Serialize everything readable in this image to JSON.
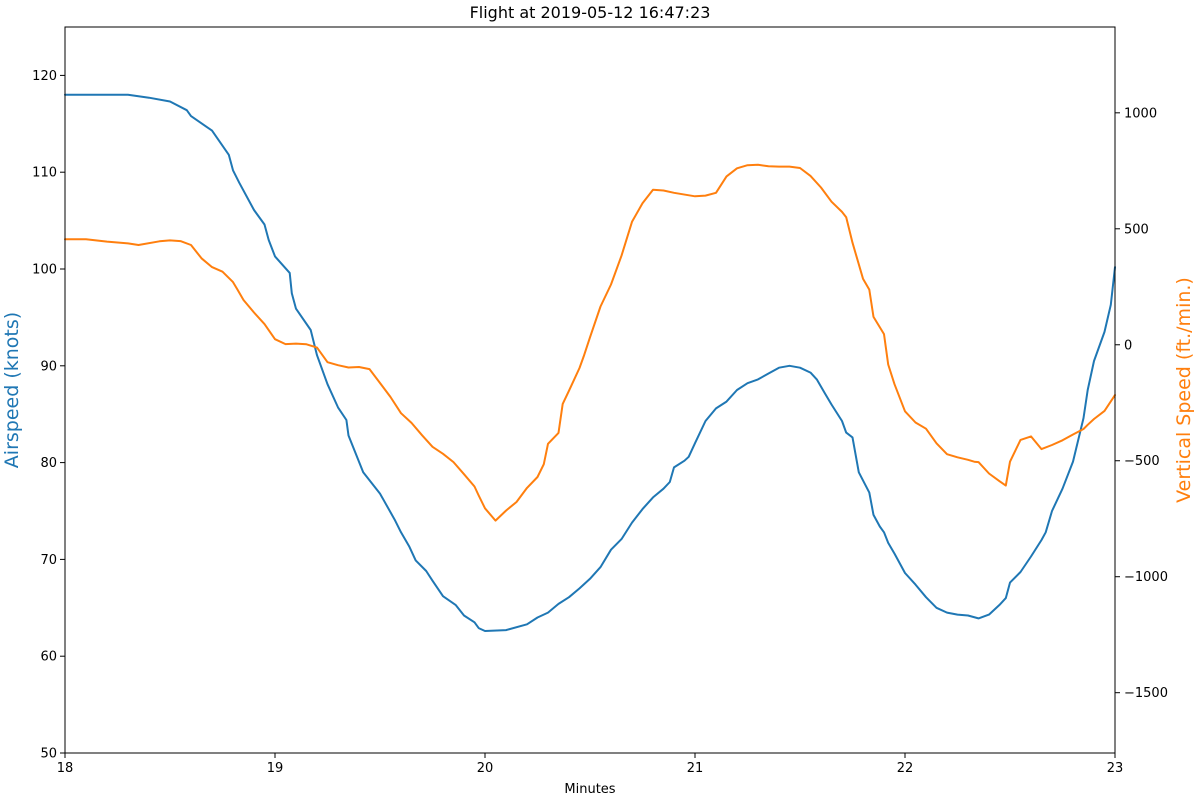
{
  "chart_data": {
    "type": "line",
    "title": "Flight at 2019-05-12 16:47:23",
    "xlabel": "Minutes",
    "xlim": [
      18,
      23
    ],
    "x_ticks": [
      18,
      19,
      20,
      21,
      22,
      23
    ],
    "grid": false,
    "colors": {
      "airspeed": "#1f77b4",
      "vertical_speed": "#ff7f0e"
    },
    "left_axis": {
      "label": "Airspeed (knots)",
      "ylim": [
        50,
        125
      ],
      "ticks": [
        50,
        60,
        70,
        80,
        90,
        100,
        110,
        120
      ]
    },
    "right_axis": {
      "label": "Vertical Speed (ft./min.)",
      "ylim": [
        -1760,
        1370
      ],
      "ticks": [
        -1500,
        -1000,
        -500,
        0,
        500,
        1000
      ],
      "tick_labels": [
        "−1500",
        "−1000",
        "−500",
        "0",
        "500",
        "1000"
      ]
    },
    "series": [
      {
        "axis": "left",
        "color": "#1f77b4",
        "x": [
          18.0,
          18.1,
          18.2,
          18.3,
          18.4,
          18.5,
          18.58,
          18.6,
          18.7,
          18.78,
          18.8,
          18.83,
          18.9,
          18.95,
          18.97,
          19.0,
          19.07,
          19.08,
          19.1,
          19.17,
          19.2,
          19.25,
          19.3,
          19.34,
          19.35,
          19.42,
          19.5,
          19.57,
          19.6,
          19.64,
          19.67,
          19.72,
          19.75,
          19.8,
          19.86,
          19.9,
          19.95,
          19.97,
          20.0,
          20.1,
          20.2,
          20.25,
          20.3,
          20.35,
          20.4,
          20.45,
          20.5,
          20.55,
          20.6,
          20.65,
          20.7,
          20.75,
          20.8,
          20.85,
          20.88,
          20.9,
          20.95,
          20.97,
          21.0,
          21.05,
          21.1,
          21.15,
          21.2,
          21.25,
          21.3,
          21.35,
          21.4,
          21.45,
          21.5,
          21.55,
          21.58,
          21.62,
          21.65,
          21.7,
          21.72,
          21.75,
          21.78,
          21.83,
          21.85,
          21.88,
          21.9,
          21.92,
          21.95,
          22.0,
          22.05,
          22.1,
          22.15,
          22.2,
          22.25,
          22.3,
          22.35,
          22.4,
          22.45,
          22.48,
          22.5,
          22.55,
          22.6,
          22.65,
          22.67,
          22.7,
          22.75,
          22.8,
          22.85,
          22.87,
          22.9,
          22.95,
          22.98,
          23.0
        ],
        "y": [
          118.0,
          118.0,
          118.0,
          118.0,
          117.7,
          117.3,
          116.4,
          115.8,
          114.3,
          111.8,
          110.2,
          108.9,
          106.1,
          104.6,
          103.0,
          101.3,
          99.6,
          97.5,
          95.9,
          93.7,
          91.1,
          88.1,
          85.7,
          84.4,
          82.8,
          79.0,
          76.8,
          74.1,
          72.8,
          71.3,
          69.9,
          68.8,
          67.8,
          66.2,
          65.3,
          64.2,
          63.5,
          62.9,
          62.6,
          62.7,
          63.3,
          64.0,
          64.5,
          65.4,
          66.1,
          67.0,
          68.0,
          69.2,
          71.0,
          72.1,
          73.8,
          75.2,
          76.4,
          77.3,
          78.0,
          79.5,
          80.2,
          80.6,
          82.0,
          84.3,
          85.6,
          86.3,
          87.5,
          88.2,
          88.6,
          89.2,
          89.8,
          90.0,
          89.8,
          89.3,
          88.6,
          87.1,
          86.0,
          84.3,
          83.1,
          82.6,
          79.0,
          76.9,
          74.6,
          73.4,
          72.8,
          71.7,
          70.6,
          68.6,
          67.4,
          66.1,
          65.0,
          64.5,
          64.3,
          64.2,
          63.9,
          64.3,
          65.3,
          66.0,
          67.6,
          68.7,
          70.3,
          72.0,
          72.8,
          75.0,
          77.3,
          80.1,
          84.6,
          87.5,
          90.5,
          93.5,
          96.3,
          100.2
        ]
      },
      {
        "axis": "right",
        "color": "#ff7f0e",
        "x": [
          18.0,
          18.1,
          18.2,
          18.3,
          18.35,
          18.45,
          18.5,
          18.55,
          18.6,
          18.65,
          18.7,
          18.75,
          18.8,
          18.82,
          18.85,
          18.9,
          18.95,
          19.0,
          19.05,
          19.1,
          19.15,
          19.2,
          19.25,
          19.3,
          19.35,
          19.4,
          19.45,
          19.5,
          19.55,
          19.6,
          19.65,
          19.7,
          19.75,
          19.8,
          19.85,
          19.9,
          19.95,
          19.97,
          20.0,
          20.05,
          20.1,
          20.15,
          20.2,
          20.25,
          20.28,
          20.3,
          20.35,
          20.37,
          20.4,
          20.45,
          20.47,
          20.5,
          20.55,
          20.6,
          20.65,
          20.7,
          20.75,
          20.8,
          20.85,
          20.9,
          21.0,
          21.05,
          21.1,
          21.15,
          21.2,
          21.25,
          21.3,
          21.35,
          21.4,
          21.45,
          21.5,
          21.55,
          21.6,
          21.65,
          21.7,
          21.72,
          21.75,
          21.8,
          21.83,
          21.85,
          21.9,
          21.92,
          21.95,
          22.0,
          22.05,
          22.1,
          22.15,
          22.2,
          22.25,
          22.3,
          22.33,
          22.35,
          22.4,
          22.45,
          22.48,
          22.5,
          22.55,
          22.6,
          22.65,
          22.7,
          22.75,
          22.8,
          22.85,
          22.87,
          22.9,
          22.95,
          23.0
        ],
        "y": [
          455,
          455,
          445,
          437,
          430,
          446,
          450,
          447,
          430,
          373,
          335,
          315,
          270,
          240,
          193,
          139,
          89,
          24,
          3,
          5,
          2,
          -12,
          -75,
          -88,
          -98,
          -96,
          -105,
          -165,
          -225,
          -295,
          -337,
          -390,
          -440,
          -470,
          -506,
          -558,
          -611,
          -650,
          -705,
          -758,
          -715,
          -678,
          -617,
          -570,
          -515,
          -427,
          -380,
          -255,
          -198,
          -100,
          -50,
          32,
          165,
          260,
          384,
          530,
          610,
          668,
          665,
          655,
          640,
          643,
          655,
          726,
          761,
          774,
          776,
          770,
          768,
          768,
          762,
          728,
          678,
          617,
          573,
          550,
          440,
          285,
          238,
          120,
          46,
          -85,
          -170,
          -287,
          -335,
          -362,
          -425,
          -472,
          -485,
          -496,
          -504,
          -506,
          -555,
          -588,
          -607,
          -504,
          -410,
          -395,
          -450,
          -432,
          -412,
          -387,
          -363,
          -345,
          -320,
          -285,
          -217
        ]
      }
    ]
  }
}
